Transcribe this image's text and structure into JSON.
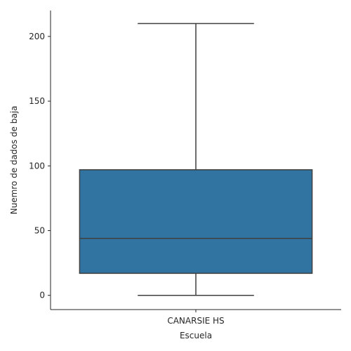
{
  "chart_data": {
    "type": "box",
    "xlabel": "Escuela",
    "ylabel": "Nuemro de dados de baja",
    "categories": [
      "CANARSIE HS"
    ],
    "boxes": [
      {
        "category": "CANARSIE HS",
        "min": 0,
        "q1": 17,
        "median": 44,
        "q3": 97,
        "max": 210
      }
    ],
    "ylim": [
      -11,
      220
    ],
    "yticks": [
      0,
      50,
      100,
      150,
      200
    ],
    "box_color": "#3274a1",
    "line_color": "#3f3f3f",
    "grid": false,
    "legend": "none"
  }
}
